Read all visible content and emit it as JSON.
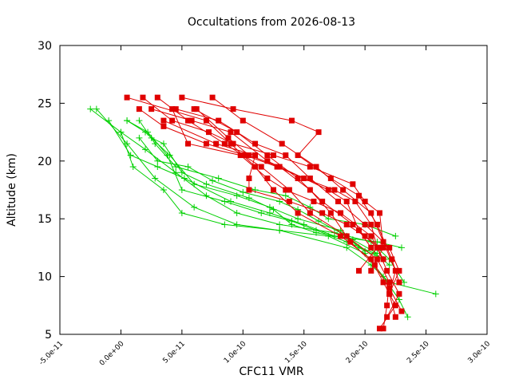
{
  "chart_data": {
    "type": "line",
    "title": "Occultations from 2026-08-13",
    "xlabel": "CFC11 VMR",
    "ylabel": "Altitude (km)",
    "xlim": [
      -5e-11,
      3e-10
    ],
    "ylim": [
      5,
      30
    ],
    "xticks": [
      "-5.0e-11",
      "0.0e+00",
      "5.0e-11",
      "1.0e-10",
      "1.5e-10",
      "2.0e-10",
      "2.5e-10",
      "3.0e-10"
    ],
    "yticks": [
      "5",
      "10",
      "15",
      "20",
      "25",
      "30"
    ],
    "grid": false,
    "colors": {
      "red_series": "#e00000",
      "green_series": "#00d000",
      "axis": "#000000"
    },
    "markers": {
      "red_series": "square",
      "green_series": "plus"
    },
    "series": [
      {
        "color": "red",
        "points": [
          [
            2.15e-10,
            5.5
          ],
          [
            2.18e-10,
            7.5
          ],
          [
            2.2e-10,
            9.5
          ],
          [
            2.1e-10,
            11.5
          ],
          [
            1.85e-10,
            13.5
          ],
          [
            1.55e-10,
            15.5
          ],
          [
            1.38e-10,
            17.5
          ],
          [
            1.15e-10,
            19.5
          ],
          [
            8.5e-11,
            21.5
          ],
          [
            5.5e-11,
            23.5
          ],
          [
            3e-11,
            25.5
          ]
        ]
      },
      {
        "color": "red",
        "points": [
          [
            2.12e-10,
            5.5
          ],
          [
            2.25e-10,
            7.5
          ],
          [
            2.15e-10,
            9.5
          ],
          [
            2.05e-10,
            11.5
          ],
          [
            1.8e-10,
            13.5
          ],
          [
            1.45e-10,
            15.5
          ],
          [
            1.25e-10,
            17.5
          ],
          [
            1.1e-10,
            19.5
          ],
          [
            9e-11,
            21.5
          ],
          [
            7e-11,
            23.5
          ],
          [
            5e-12,
            25.5
          ]
        ]
      },
      {
        "color": "red",
        "points": [
          [
            2.18e-10,
            6.5
          ],
          [
            2.28e-10,
            8.5
          ],
          [
            2.18e-10,
            10.5
          ],
          [
            2.1e-10,
            12.5
          ],
          [
            1.9e-10,
            14.5
          ],
          [
            1.65e-10,
            16.5
          ],
          [
            1.45e-10,
            18.5
          ],
          [
            1.2e-10,
            20.5
          ],
          [
            9.5e-11,
            22.5
          ],
          [
            6e-11,
            24.5
          ]
        ]
      },
      {
        "color": "red",
        "points": [
          [
            2.25e-10,
            6.5
          ],
          [
            2.2e-10,
            8.5
          ],
          [
            2.28e-10,
            10.5
          ],
          [
            2.2e-10,
            12.5
          ],
          [
            2e-10,
            14.5
          ],
          [
            1.78e-10,
            16.5
          ],
          [
            1.55e-10,
            18.5
          ],
          [
            1.35e-10,
            20.5
          ],
          [
            1.1e-10,
            21.5
          ],
          [
            8e-11,
            23.5
          ],
          [
            4.5e-11,
            24.5
          ]
        ]
      },
      {
        "color": "red",
        "points": [
          [
            2.3e-10,
            7.0
          ],
          [
            2.2e-10,
            9.0
          ],
          [
            2.08e-10,
            11.0
          ],
          [
            1.88e-10,
            13.0
          ],
          [
            1.72e-10,
            15.5
          ],
          [
            1.55e-10,
            17.5
          ],
          [
            1.3e-10,
            19.5
          ],
          [
            1.05e-10,
            20.5
          ],
          [
            8.8e-11,
            22.0
          ],
          [
            6.2e-11,
            24.5
          ]
        ]
      },
      {
        "color": "red",
        "points": [
          [
            2.2e-10,
            8.5
          ],
          [
            2.25e-10,
            10.5
          ],
          [
            2.15e-10,
            13.0
          ],
          [
            2.05e-10,
            15.5
          ],
          [
            1.82e-10,
            17.5
          ],
          [
            1.6e-10,
            19.5
          ],
          [
            1.32e-10,
            21.5
          ],
          [
            1e-10,
            23.5
          ],
          [
            7.5e-11,
            25.5
          ]
        ]
      },
      {
        "color": "red",
        "points": [
          [
            2.28e-10,
            9.5
          ],
          [
            2.22e-10,
            11.5
          ],
          [
            2.1e-10,
            14.5
          ],
          [
            1.95e-10,
            17.0
          ],
          [
            1.72e-10,
            18.5
          ],
          [
            1.45e-10,
            20.5
          ],
          [
            1.62e-10,
            22.5
          ],
          [
            1.4e-10,
            23.5
          ],
          [
            9.2e-11,
            24.5
          ],
          [
            5e-11,
            25.5
          ]
        ]
      },
      {
        "color": "red",
        "points": [
          [
            2.05e-10,
            10.5
          ],
          [
            2.15e-10,
            12.5
          ],
          [
            2.12e-10,
            15.5
          ],
          [
            2e-10,
            16.5
          ],
          [
            1.9e-10,
            18.0
          ],
          [
            1.55e-10,
            19.5
          ],
          [
            1.25e-10,
            20.5
          ],
          [
            9.2e-11,
            21.5
          ],
          [
            7.2e-11,
            22.5
          ],
          [
            4.2e-11,
            23.5
          ],
          [
            1.8e-11,
            25.5
          ]
        ]
      },
      {
        "color": "red",
        "points": [
          [
            1.95e-10,
            10.5
          ],
          [
            2.1e-10,
            12.5
          ],
          [
            2.05e-10,
            14.5
          ],
          [
            1.92e-10,
            16.5
          ],
          [
            1.75e-10,
            17.5
          ],
          [
            1.5e-10,
            18.5
          ],
          [
            1.2e-10,
            20.0
          ],
          [
            9e-11,
            22.5
          ],
          [
            5.8e-11,
            23.5
          ],
          [
            2.5e-11,
            24.5
          ]
        ]
      },
      {
        "color": "red",
        "points": [
          [
            2.12e-10,
            12.5
          ],
          [
            2e-10,
            13.5
          ],
          [
            1.85e-10,
            14.5
          ],
          [
            1.65e-10,
            15.5
          ],
          [
            1.38e-10,
            16.5
          ],
          [
            1.05e-10,
            17.5
          ],
          [
            1.05e-10,
            18.5
          ],
          [
            1.1e-10,
            20.5
          ],
          [
            7.8e-11,
            21.5
          ],
          [
            3.5e-11,
            23.5
          ]
        ]
      },
      {
        "color": "red",
        "points": [
          [
            2.15e-10,
            11.5
          ],
          [
            2.05e-10,
            13.5
          ],
          [
            1.8e-10,
            15.5
          ],
          [
            1.58e-10,
            16.5
          ],
          [
            1.35e-10,
            17.5
          ],
          [
            1.2e-10,
            18.5
          ],
          [
            9.8e-11,
            20.5
          ],
          [
            5.5e-11,
            21.5
          ],
          [
            4.2e-11,
            24.5
          ]
        ]
      },
      {
        "color": "red",
        "points": [
          [
            2.05e-10,
            12.5
          ],
          [
            1.95e-10,
            14.0
          ],
          [
            1.85e-10,
            16.5
          ],
          [
            1.7e-10,
            17.5
          ],
          [
            1.5e-10,
            18.5
          ],
          [
            1.28e-10,
            19.5
          ],
          [
            1.02e-10,
            20.5
          ],
          [
            7e-11,
            21.5
          ],
          [
            3.5e-11,
            23.0
          ],
          [
            1.5e-11,
            24.5
          ]
        ]
      },
      {
        "color": "green",
        "points": [
          [
            2.58e-10,
            8.5
          ],
          [
            2.2e-10,
            9.5
          ],
          [
            2.05e-10,
            11.0
          ],
          [
            1.85e-10,
            12.5
          ],
          [
            1.3e-10,
            14.0
          ],
          [
            8.5e-11,
            14.5
          ],
          [
            5e-11,
            15.5
          ],
          [
            3.5e-11,
            17.5
          ],
          [
            1e-11,
            19.5
          ],
          [
            0.0,
            22.5
          ],
          [
            -2.5e-11,
            24.5
          ]
        ]
      },
      {
        "color": "green",
        "points": [
          [
            2.35e-10,
            6.5
          ],
          [
            2.28e-10,
            8.0
          ],
          [
            2.15e-10,
            10.0
          ],
          [
            2e-10,
            12.0
          ],
          [
            1.7e-10,
            13.5
          ],
          [
            1.3e-10,
            14.0
          ],
          [
            9.5e-11,
            14.5
          ],
          [
            6e-11,
            16.0
          ],
          [
            2.8e-11,
            18.5
          ],
          [
            5e-12,
            21.5
          ],
          [
            -2e-11,
            24.5
          ]
        ]
      },
      {
        "color": "green",
        "points": [
          [
            2.32e-10,
            9.5
          ],
          [
            2.2e-10,
            11.5
          ],
          [
            2.05e-10,
            13.0
          ],
          [
            1.75e-10,
            13.8
          ],
          [
            1.3e-10,
            14.5
          ],
          [
            9.5e-11,
            15.5
          ],
          [
            7e-11,
            17.0
          ],
          [
            4.5e-11,
            19.0
          ],
          [
            2e-11,
            21.0
          ],
          [
            0.0,
            22.5
          ]
        ]
      },
      {
        "color": "green",
        "points": [
          [
            2.3e-10,
            12.5
          ],
          [
            2.1e-10,
            13.0
          ],
          [
            1.75e-10,
            13.5
          ],
          [
            1.5e-10,
            14.5
          ],
          [
            1.22e-10,
            15.5
          ],
          [
            9e-11,
            16.5
          ],
          [
            5.2e-11,
            18.5
          ],
          [
            3e-11,
            19.5
          ],
          [
            8e-12,
            20.5
          ],
          [
            -1e-11,
            23.5
          ]
        ]
      },
      {
        "color": "green",
        "points": [
          [
            2.15e-10,
            11.5
          ],
          [
            1.95e-10,
            12.5
          ],
          [
            1.8e-10,
            14.0
          ],
          [
            1.45e-10,
            15.0
          ],
          [
            1.22e-10,
            16.0
          ],
          [
            9.5e-11,
            17.0
          ],
          [
            6e-11,
            18.0
          ],
          [
            4e-11,
            20.5
          ],
          [
            2e-11,
            22.5
          ],
          [
            5e-12,
            23.5
          ]
        ]
      },
      {
        "color": "green",
        "points": [
          [
            2.25e-10,
            13.5
          ],
          [
            2e-10,
            14.5
          ],
          [
            1.7e-10,
            15.0
          ],
          [
            1.55e-10,
            16.0
          ],
          [
            1.35e-10,
            17.0
          ],
          [
            1.1e-10,
            17.5
          ],
          [
            8e-11,
            18.5
          ],
          [
            4.5e-11,
            19.5
          ],
          [
            2.8e-11,
            21.5
          ],
          [
            1.5e-11,
            23.5
          ]
        ]
      },
      {
        "color": "green",
        "points": [
          [
            2.2e-10,
            11.0
          ],
          [
            2.08e-10,
            12.0
          ],
          [
            1.85e-10,
            13.0
          ],
          [
            1.6e-10,
            14.0
          ],
          [
            1.4e-10,
            14.8
          ],
          [
            1.15e-10,
            15.5
          ],
          [
            8.5e-11,
            16.5
          ],
          [
            5e-11,
            17.5
          ],
          [
            3.8e-11,
            20.5
          ],
          [
            2.2e-11,
            22.5
          ],
          [
            5e-12,
            23.5
          ]
        ]
      },
      {
        "color": "green",
        "points": [
          [
            2.1e-10,
            12.0
          ],
          [
            1.9e-10,
            13.2
          ],
          [
            1.6e-10,
            13.8
          ],
          [
            1.4e-10,
            14.5
          ],
          [
            1.25e-10,
            15.8
          ],
          [
            1.05e-10,
            16.8
          ],
          [
            7e-11,
            18.0
          ],
          [
            5e-11,
            19.0
          ],
          [
            3.5e-11,
            21.5
          ],
          [
            2.5e-11,
            22.0
          ]
        ]
      },
      {
        "color": "green",
        "points": [
          [
            2e-10,
            12.2
          ],
          [
            1.85e-10,
            13.5
          ],
          [
            1.62e-10,
            14.8
          ],
          [
            1.45e-10,
            15.8
          ],
          [
            1.3e-10,
            16.5
          ],
          [
            1e-10,
            17.3
          ],
          [
            7.5e-11,
            18.3
          ],
          [
            5.5e-11,
            19.5
          ],
          [
            3e-11,
            20.0
          ],
          [
            1.5e-11,
            22.0
          ]
        ]
      }
    ]
  }
}
